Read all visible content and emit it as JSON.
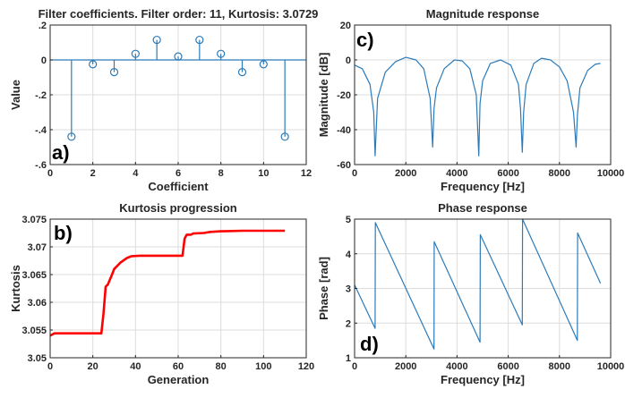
{
  "chart_data": [
    {
      "type": "stem",
      "panel_label": "a)",
      "title": "Filter coefficients. Filter order: 11, Kurtosis: 3.0729",
      "xlabel": "Coefficient",
      "ylabel": "Value",
      "xlim": [
        0,
        12
      ],
      "ylim": [
        -0.6,
        0.2
      ],
      "xticks": [
        0,
        2,
        4,
        6,
        8,
        10,
        12
      ],
      "yticks": [
        -0.6,
        -0.4,
        -0.2,
        0,
        0.2
      ],
      "grid": true,
      "color": "#2b7bba",
      "x": [
        1,
        2,
        3,
        4,
        5,
        6,
        7,
        8,
        9,
        10,
        11
      ],
      "values": [
        -0.44,
        -0.025,
        -0.07,
        0.035,
        0.115,
        0.02,
        0.115,
        0.035,
        -0.07,
        -0.025,
        -0.44
      ]
    },
    {
      "type": "line",
      "panel_label": "c)",
      "title": "Magnitude response",
      "xlabel": "Frequency [Hz]",
      "ylabel": "Magnitude [dB]",
      "xlim": [
        0,
        10000
      ],
      "ylim": [
        -60,
        20
      ],
      "xticks": [
        0,
        2000,
        4000,
        6000,
        8000,
        10000
      ],
      "yticks": [
        -60,
        -40,
        -20,
        0,
        20
      ],
      "grid": true,
      "color": "#2b7bba",
      "x": [
        0,
        300,
        600,
        750,
        800,
        900,
        1200,
        1600,
        2000,
        2400,
        2700,
        2950,
        3050,
        3100,
        3200,
        3500,
        3900,
        4200,
        4500,
        4750,
        4850,
        4900,
        5000,
        5300,
        5700,
        6100,
        6400,
        6480,
        6550,
        6600,
        6700,
        7000,
        7300,
        7650,
        8000,
        8300,
        8550,
        8650,
        8700,
        8800,
        9100,
        9400,
        9600
      ],
      "values": [
        -3,
        -5,
        -14,
        -30,
        -55,
        -22,
        -7,
        -1,
        1.5,
        0,
        -5,
        -22,
        -50,
        -28,
        -16,
        -5,
        0,
        -0.5,
        -5,
        -20,
        -55,
        -25,
        -12,
        -2,
        0,
        -3,
        -14,
        -28,
        -53,
        -30,
        -14,
        -2,
        1,
        0,
        -4,
        -12,
        -30,
        -50,
        -32,
        -16,
        -6,
        -2.5,
        -2
      ]
    },
    {
      "type": "line",
      "panel_label": "b)",
      "title": "Kurtosis progression",
      "xlabel": "Generation",
      "ylabel": "Kurtosis",
      "xlim": [
        0,
        120
      ],
      "ylim": [
        3.05,
        3.075
      ],
      "xticks": [
        0,
        20,
        40,
        60,
        80,
        100,
        120
      ],
      "yticks": [
        3.05,
        3.055,
        3.06,
        3.065,
        3.07,
        3.075
      ],
      "grid": true,
      "color": "#ff0000",
      "x": [
        0,
        1,
        2,
        5,
        10,
        24,
        25,
        26,
        27,
        29,
        30,
        33,
        36,
        38,
        42,
        62,
        63,
        64,
        66,
        67,
        72,
        75,
        80,
        90,
        110
      ],
      "values": [
        3.054,
        3.0542,
        3.0544,
        3.0544,
        3.0544,
        3.0544,
        3.058,
        3.0628,
        3.0632,
        3.065,
        3.066,
        3.0672,
        3.068,
        3.0683,
        3.0684,
        3.0684,
        3.0715,
        3.0722,
        3.0722,
        3.0724,
        3.0725,
        3.0727,
        3.0728,
        3.0729,
        3.0729
      ]
    },
    {
      "type": "line",
      "panel_label": "d)",
      "title": "Phase response",
      "xlabel": "Frequency [Hz]",
      "ylabel": "Phase [rad]",
      "xlim": [
        0,
        10000
      ],
      "ylim": [
        1,
        5
      ],
      "xticks": [
        0,
        2000,
        4000,
        6000,
        8000,
        10000
      ],
      "yticks": [
        1,
        2,
        3,
        4,
        5
      ],
      "grid": true,
      "color": "#2b7bba",
      "x": [
        0,
        800,
        810,
        3100,
        3110,
        4900,
        4910,
        6550,
        6560,
        8700,
        8710,
        9600
      ],
      "values": [
        3.1,
        1.85,
        4.9,
        1.25,
        4.35,
        1.45,
        4.55,
        1.95,
        5.0,
        1.5,
        4.6,
        3.15
      ]
    }
  ]
}
